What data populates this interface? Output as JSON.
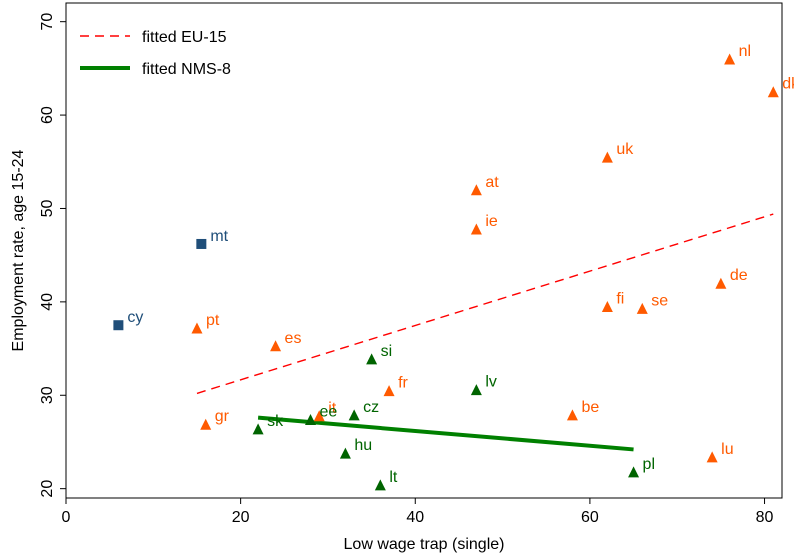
{
  "chart_data": {
    "type": "scatter",
    "xlabel": "Low wage trap (single)",
    "ylabel": "Employment rate, age 15-24",
    "xlim": [
      0,
      82
    ],
    "ylim": [
      19,
      72
    ],
    "xticks": [
      0,
      20,
      40,
      60,
      80
    ],
    "yticks": [
      20,
      30,
      40,
      50,
      60,
      70
    ],
    "grid": false,
    "legend_position": "top-left",
    "colors": {
      "eu15": "#ff5a00",
      "nms8": "#006400",
      "other": "#1f4e79",
      "fit_eu15": "#ff0000",
      "fit_nms8": "#008000"
    },
    "series": [
      {
        "group": "eu15",
        "marker": "triangle",
        "points": [
          {
            "label": "nl",
            "x": 76,
            "y": 66
          },
          {
            "label": "dk",
            "x": 81,
            "y": 62.5
          },
          {
            "label": "uk",
            "x": 62,
            "y": 55.5
          },
          {
            "label": "at",
            "x": 47,
            "y": 52
          },
          {
            "label": "ie",
            "x": 47,
            "y": 47.8
          },
          {
            "label": "de",
            "x": 75,
            "y": 42
          },
          {
            "label": "fi",
            "x": 62,
            "y": 39.5
          },
          {
            "label": "se",
            "x": 66,
            "y": 39.3
          },
          {
            "label": "pt",
            "x": 15,
            "y": 37.2
          },
          {
            "label": "es",
            "x": 24,
            "y": 35.3
          },
          {
            "label": "fr",
            "x": 37,
            "y": 30.5
          },
          {
            "label": "it",
            "x": 29,
            "y": 27.8
          },
          {
            "label": "be",
            "x": 58,
            "y": 27.9
          },
          {
            "label": "gr",
            "x": 16,
            "y": 26.9
          },
          {
            "label": "lu",
            "x": 74,
            "y": 23.4
          }
        ]
      },
      {
        "group": "nms8",
        "marker": "triangle",
        "points": [
          {
            "label": "si",
            "x": 35,
            "y": 33.9
          },
          {
            "label": "lv",
            "x": 47,
            "y": 30.6
          },
          {
            "label": "cz",
            "x": 33,
            "y": 27.9
          },
          {
            "label": "ee",
            "x": 28,
            "y": 27.4
          },
          {
            "label": "sk",
            "x": 22,
            "y": 26.4
          },
          {
            "label": "hu",
            "x": 32,
            "y": 23.8
          },
          {
            "label": "pl",
            "x": 65,
            "y": 21.8
          },
          {
            "label": "lt",
            "x": 36,
            "y": 20.4
          }
        ]
      },
      {
        "group": "other",
        "marker": "square",
        "points": [
          {
            "label": "mt",
            "x": 15.5,
            "y": 46.2
          },
          {
            "label": "cy",
            "x": 6,
            "y": 37.5
          }
        ]
      }
    ],
    "fits": [
      {
        "name": "fitted EU-15",
        "style": "dashed",
        "color": "#ff0000",
        "x": [
          15,
          81
        ],
        "y": [
          30.2,
          49.4
        ]
      },
      {
        "name": "fitted NMS-8",
        "style": "solid",
        "color": "#008000",
        "x": [
          22,
          65
        ],
        "y": [
          27.6,
          24.2
        ]
      }
    ]
  }
}
